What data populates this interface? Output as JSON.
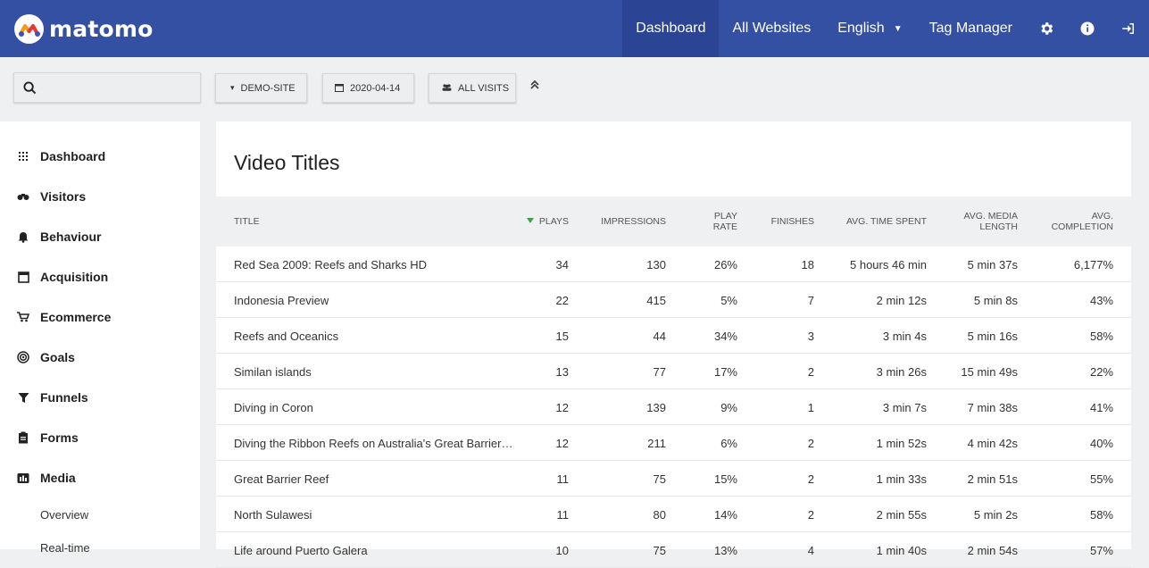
{
  "header": {
    "logo_text": "matomo",
    "nav": [
      {
        "label": "Dashboard",
        "active": true
      },
      {
        "label": "All Websites"
      },
      {
        "label": "English"
      },
      {
        "label": "Tag Manager"
      }
    ],
    "icons": [
      "gear-icon",
      "info-icon",
      "sign-out-icon"
    ]
  },
  "filters": {
    "search_placeholder": "",
    "site": "DEMO-SITE",
    "date": "2020-04-14",
    "segment": "ALL VISITS"
  },
  "sidebar": {
    "items": [
      {
        "label": "Dashboard",
        "icon": "grid-icon"
      },
      {
        "label": "Visitors",
        "icon": "binoculars-icon"
      },
      {
        "label": "Behaviour",
        "icon": "bell-icon"
      },
      {
        "label": "Acquisition",
        "icon": "window-icon"
      },
      {
        "label": "Ecommerce",
        "icon": "cart-icon"
      },
      {
        "label": "Goals",
        "icon": "target-icon"
      },
      {
        "label": "Funnels",
        "icon": "funnel-icon"
      },
      {
        "label": "Forms",
        "icon": "clipboard-icon"
      },
      {
        "label": "Media",
        "icon": "media-icon"
      }
    ],
    "subitems": [
      {
        "label": "Overview"
      },
      {
        "label": "Real-time"
      }
    ]
  },
  "report": {
    "title": "Video Titles",
    "columns": {
      "title": "TITLE",
      "plays": "PLAYS",
      "impressions": "IMPRESSIONS",
      "play_rate_1": "PLAY",
      "play_rate_2": "RATE",
      "finishes": "FINISHES",
      "avg_time": "AVG. TIME SPENT",
      "avg_media_1": "AVG. MEDIA",
      "avg_media_2": "LENGTH",
      "avg_comp_1": "AVG.",
      "avg_comp_2": "COMPLETION"
    },
    "rows": [
      {
        "title": "Red Sea 2009: Reefs and Sharks HD",
        "plays": "34",
        "impressions": "130",
        "play_rate": "26%",
        "finishes": "18",
        "avg_time": "5 hours 46 min",
        "avg_media": "5 min 37s",
        "avg_completion": "6,177%"
      },
      {
        "title": "Indonesia Preview",
        "plays": "22",
        "impressions": "415",
        "play_rate": "5%",
        "finishes": "7",
        "avg_time": "2 min 12s",
        "avg_media": "5 min 8s",
        "avg_completion": "43%"
      },
      {
        "title": "Reefs and Oceanics",
        "plays": "15",
        "impressions": "44",
        "play_rate": "34%",
        "finishes": "3",
        "avg_time": "3 min 4s",
        "avg_media": "5 min 16s",
        "avg_completion": "58%"
      },
      {
        "title": "Similan islands",
        "plays": "13",
        "impressions": "77",
        "play_rate": "17%",
        "finishes": "2",
        "avg_time": "3 min 26s",
        "avg_media": "15 min 49s",
        "avg_completion": "22%"
      },
      {
        "title": "Diving in Coron",
        "plays": "12",
        "impressions": "139",
        "play_rate": "9%",
        "finishes": "1",
        "avg_time": "3 min 7s",
        "avg_media": "7 min 38s",
        "avg_completion": "41%"
      },
      {
        "title": "Diving the Ribbon Reefs on Australia's Great Barrier…",
        "plays": "12",
        "impressions": "211",
        "play_rate": "6%",
        "finishes": "2",
        "avg_time": "1 min 52s",
        "avg_media": "4 min 42s",
        "avg_completion": "40%"
      },
      {
        "title": "Great Barrier Reef",
        "plays": "11",
        "impressions": "75",
        "play_rate": "15%",
        "finishes": "2",
        "avg_time": "1 min 33s",
        "avg_media": "2 min 51s",
        "avg_completion": "55%"
      },
      {
        "title": "North Sulawesi",
        "plays": "11",
        "impressions": "80",
        "play_rate": "14%",
        "finishes": "2",
        "avg_time": "2 min 55s",
        "avg_media": "5 min 2s",
        "avg_completion": "58%"
      },
      {
        "title": "Life around Puerto Galera",
        "plays": "10",
        "impressions": "75",
        "play_rate": "13%",
        "finishes": "4",
        "avg_time": "1 min 40s",
        "avg_media": "2 min 54s",
        "avg_completion": "57%"
      }
    ]
  }
}
